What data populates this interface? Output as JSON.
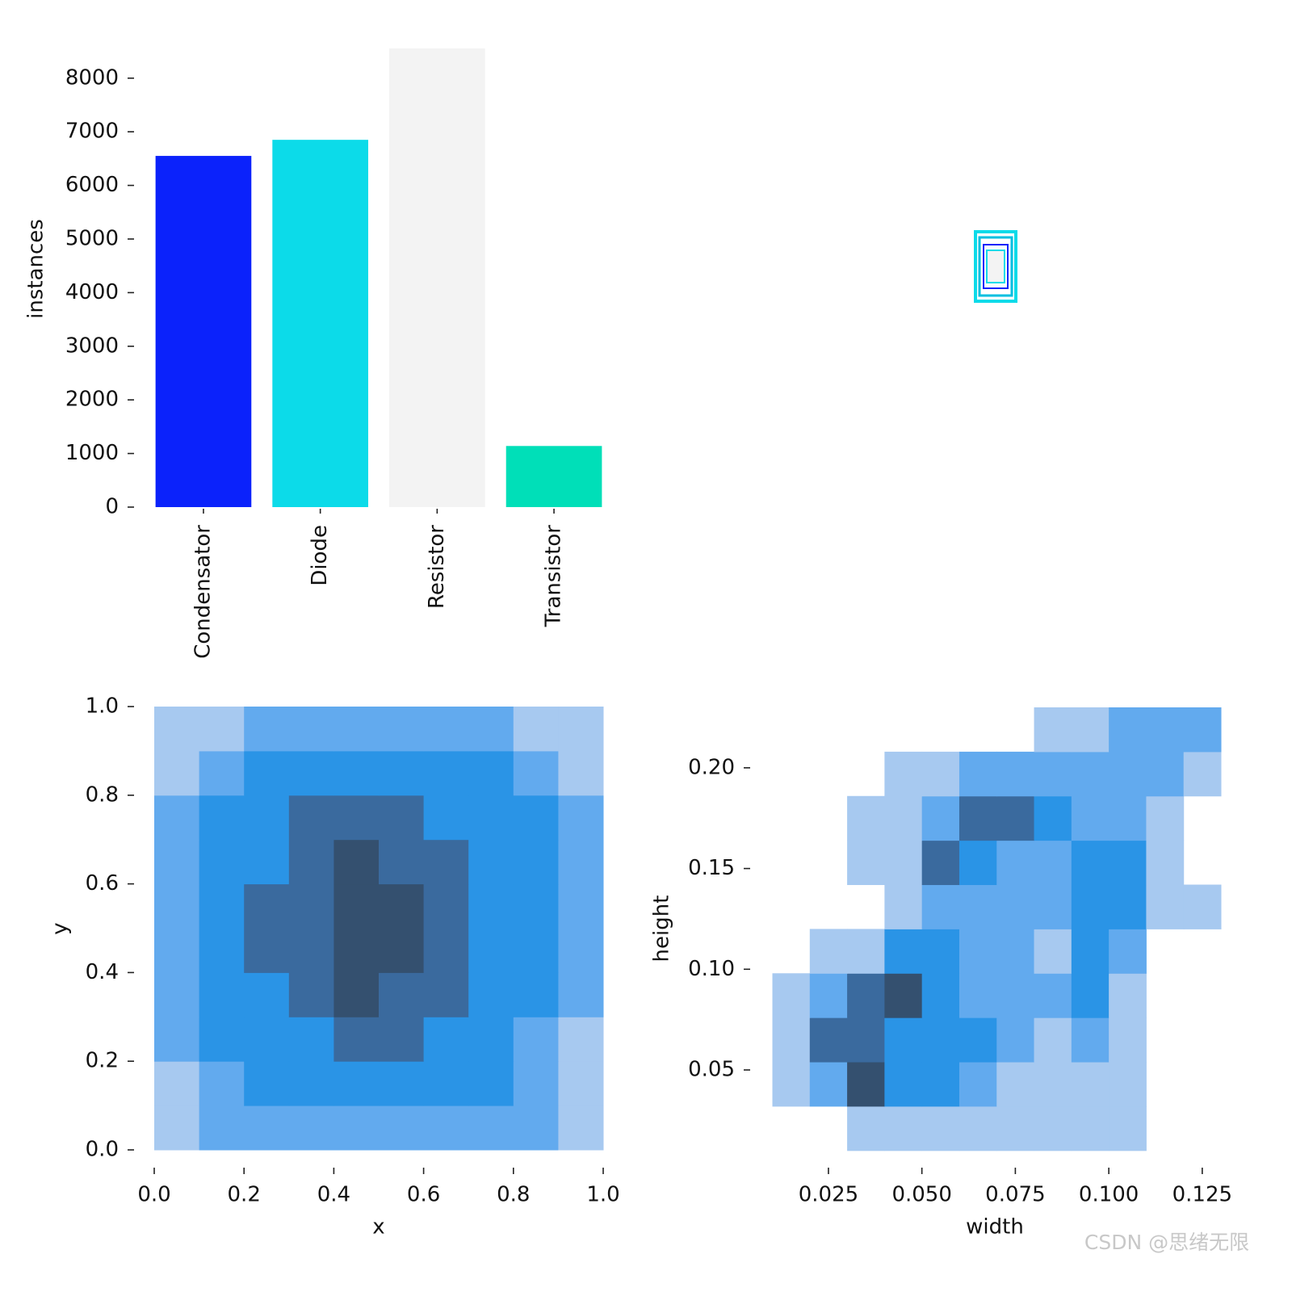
{
  "chart_data": [
    {
      "type": "bar",
      "ylabel": "instances",
      "categories": [
        "Condensator",
        "Diode",
        "Resistor",
        "Transistor"
      ],
      "values": [
        6550,
        6850,
        8554,
        1140
      ],
      "colors": [
        "#0b22fb",
        "#0cdbe9",
        "#f3f3f3",
        "#00dfb8"
      ],
      "ylim": [
        0,
        8554
      ],
      "yticks": [
        0,
        1000,
        2000,
        3000,
        4000,
        5000,
        6000,
        7000,
        8000
      ]
    },
    {
      "type": "heatmap",
      "xlabel": "x",
      "ylabel": "y",
      "xlim": [
        0,
        1
      ],
      "ylim": [
        0,
        1
      ],
      "xticks": [
        {
          "value": 0,
          "label": "0.0"
        },
        0.2,
        0.4,
        0.6,
        0.8,
        {
          "value": 1,
          "label": "1.0"
        }
      ],
      "yticks": [
        {
          "value": 0,
          "label": "0.0"
        },
        0.2,
        0.4,
        0.6,
        0.8,
        {
          "value": 1,
          "label": "1.0"
        }
      ],
      "xbins": [
        0,
        0.1,
        0.2,
        0.3,
        0.4,
        0.5,
        0.6,
        0.7,
        0.8,
        0.9,
        1
      ],
      "ybins": [
        0,
        0.1,
        0.2,
        0.3,
        0.4,
        0.5,
        0.6,
        0.7,
        0.8,
        0.9,
        1
      ],
      "colors": [
        "#a7c9f0",
        "#62aaee",
        "#2a94e6",
        "#3a6a9e",
        "#34506f"
      ],
      "counts": [
        [
          1,
          2,
          2,
          2,
          2,
          2,
          2,
          2,
          2,
          1
        ],
        [
          1,
          2,
          3,
          3,
          3,
          3,
          3,
          3,
          2,
          1
        ],
        [
          2,
          3,
          3,
          3,
          4,
          4,
          3,
          3,
          2,
          1
        ],
        [
          2,
          3,
          3,
          4,
          5,
          4,
          4,
          3,
          3,
          2
        ],
        [
          2,
          3,
          4,
          4,
          5,
          5,
          4,
          3,
          3,
          2
        ],
        [
          2,
          3,
          4,
          4,
          5,
          5,
          4,
          3,
          3,
          2
        ],
        [
          2,
          3,
          3,
          4,
          5,
          4,
          4,
          3,
          3,
          2
        ],
        [
          2,
          3,
          3,
          4,
          4,
          4,
          3,
          3,
          3,
          2
        ],
        [
          1,
          2,
          3,
          3,
          3,
          3,
          3,
          3,
          2,
          1
        ],
        [
          1,
          1,
          2,
          2,
          2,
          2,
          2,
          2,
          1,
          1
        ]
      ]
    },
    {
      "type": "heatmap",
      "xlabel": "width",
      "ylabel": "height",
      "xlim": [
        0.01,
        0.13
      ],
      "ylim": [
        0.01,
        0.23
      ],
      "xticks": [
        0.025,
        {
          "value": 0.05,
          "label": "0.050"
        },
        0.075,
        {
          "value": 0.1,
          "label": "0.100"
        },
        0.125
      ],
      "yticks": [
        0.05,
        {
          "value": 0.1,
          "label": "0.10"
        },
        0.15,
        {
          "value": 0.2,
          "label": "0.20"
        }
      ],
      "xbins": [
        0.01,
        0.02,
        0.03,
        0.04,
        0.05,
        0.06,
        0.07,
        0.08,
        0.09,
        0.1,
        0.11,
        0.12,
        0.13
      ],
      "ybins": [
        0.01,
        0.032,
        0.054,
        0.076,
        0.098,
        0.12,
        0.142,
        0.164,
        0.186,
        0.208,
        0.23
      ],
      "colors": [
        "#a7c9f0",
        "#62aaee",
        "#2a94e6",
        "#3a6a9e",
        "#34506f"
      ],
      "counts": [
        [
          0,
          0,
          1,
          1,
          1,
          1,
          1,
          1,
          1,
          1,
          0,
          0
        ],
        [
          1,
          2,
          5,
          3,
          3,
          2,
          1,
          1,
          1,
          1,
          0,
          0
        ],
        [
          1,
          4,
          4,
          3,
          3,
          3,
          2,
          1,
          2,
          1,
          0,
          0
        ],
        [
          1,
          2,
          4,
          5,
          3,
          2,
          2,
          2,
          3,
          1,
          0,
          0
        ],
        [
          0,
          1,
          1,
          3,
          3,
          2,
          2,
          1,
          3,
          2,
          0,
          0
        ],
        [
          0,
          0,
          0,
          1,
          2,
          2,
          2,
          2,
          3,
          3,
          1,
          1
        ],
        [
          0,
          0,
          1,
          1,
          4,
          3,
          2,
          2,
          3,
          3,
          1,
          0
        ],
        [
          0,
          0,
          1,
          1,
          2,
          4,
          4,
          3,
          2,
          2,
          1,
          0
        ],
        [
          0,
          0,
          0,
          1,
          1,
          2,
          2,
          2,
          2,
          2,
          2,
          1
        ],
        [
          0,
          0,
          0,
          0,
          0,
          0,
          0,
          1,
          1,
          2,
          2,
          2
        ]
      ]
    }
  ],
  "watermark": "CSDN @思绪无限"
}
